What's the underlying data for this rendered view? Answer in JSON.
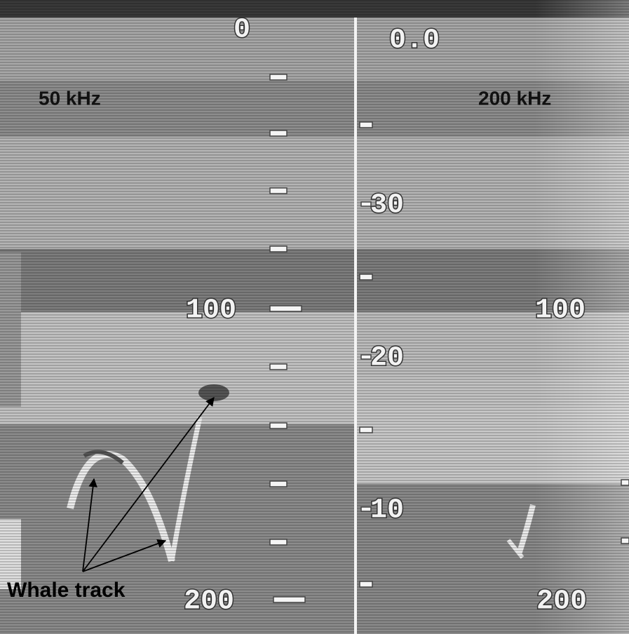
{
  "left_panel": {
    "frequency": "50 kHz",
    "scale_labels": [
      "0",
      "100",
      "200"
    ]
  },
  "right_panel": {
    "frequency": "200 kHz",
    "scale_labels": [
      "0.0",
      "30",
      "100",
      "20",
      "10",
      "200"
    ]
  },
  "annotation": "Whale track"
}
